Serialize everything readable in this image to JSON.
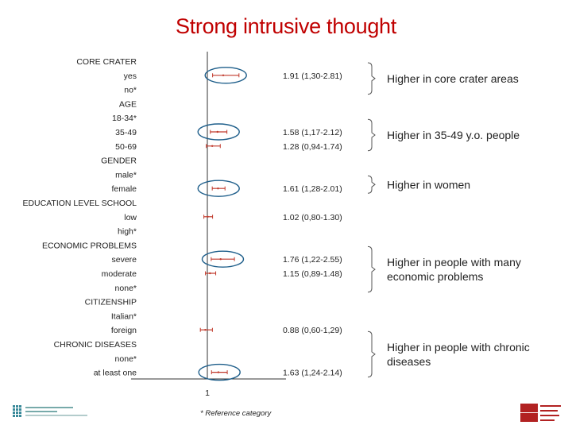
{
  "title": "Strong intrusive thought",
  "footnote": "* Reference category",
  "chart_data": {
    "type": "forest",
    "reference_value": 1,
    "x_tick_label": "1",
    "rows": [
      {
        "label": "CORE CRATER",
        "header": true
      },
      {
        "label": "yes",
        "or": 1.91,
        "lo": 1.3,
        "hi": 2.81,
        "text": "1.91 (1,30-2.81)",
        "circled": true
      },
      {
        "label": "no*"
      },
      {
        "label": "AGE",
        "header": true
      },
      {
        "label": "18-34*"
      },
      {
        "label": "35-49",
        "or": 1.58,
        "lo": 1.17,
        "hi": 2.12,
        "text": "1.58 (1,17-2.12)",
        "circled": true
      },
      {
        "label": "50-69",
        "or": 1.28,
        "lo": 0.94,
        "hi": 1.74,
        "text": "1.28 (0,94-1.74)"
      },
      {
        "label": "GENDER",
        "header": true
      },
      {
        "label": "male*"
      },
      {
        "label": "female",
        "or": 1.61,
        "lo": 1.28,
        "hi": 2.01,
        "text": "1.61 (1,28-2.01)",
        "circled": true
      },
      {
        "label": "EDUCATION LEVEL SCHOOL",
        "header": true
      },
      {
        "label": "low",
        "or": 1.02,
        "lo": 0.8,
        "hi": 1.3,
        "text": "1.02 (0,80-1.30)"
      },
      {
        "label": "high*"
      },
      {
        "label": "ECONOMIC PROBLEMS",
        "header": true
      },
      {
        "label": "severe",
        "or": 1.76,
        "lo": 1.22,
        "hi": 2.55,
        "text": "1.76 (1,22-2.55)",
        "circled": true
      },
      {
        "label": "moderate",
        "or": 1.15,
        "lo": 0.89,
        "hi": 1.48,
        "text": "1.15 (0,89-1.48)"
      },
      {
        "label": "none*"
      },
      {
        "label": "CITIZENSHIP",
        "header": true
      },
      {
        "label": "Italian*"
      },
      {
        "label": "foreign",
        "or": 0.88,
        "lo": 0.6,
        "hi": 1.29,
        "text": "0.88 (0,60-1,29)"
      },
      {
        "label": "CHRONIC DISEASES",
        "header": true
      },
      {
        "label": "none*"
      },
      {
        "label": "at least one",
        "or": 1.63,
        "lo": 1.24,
        "hi": 2.14,
        "text": "1.63 (1,24-2.14)",
        "circled": true
      }
    ],
    "annotations": [
      {
        "lines": [
          "Higher in core crater areas"
        ],
        "from_row": 0,
        "to_row": 2
      },
      {
        "lines": [
          "Higher in 35-49 y.o. people"
        ],
        "from_row": 4,
        "to_row": 6
      },
      {
        "lines": [
          "Higher in women"
        ],
        "from_row": 8,
        "to_row": 9
      },
      {
        "lines": [
          "Higher in people with many",
          "economic problems"
        ],
        "from_row": 13,
        "to_row": 16
      },
      {
        "lines": [
          "Higher in people with chronic",
          "diseases"
        ],
        "from_row": 19,
        "to_row": 22
      }
    ]
  },
  "colors": {
    "title": "#c00000",
    "ci": "#c0392b",
    "circle": "#1f5f8b",
    "axis": "#333333"
  }
}
